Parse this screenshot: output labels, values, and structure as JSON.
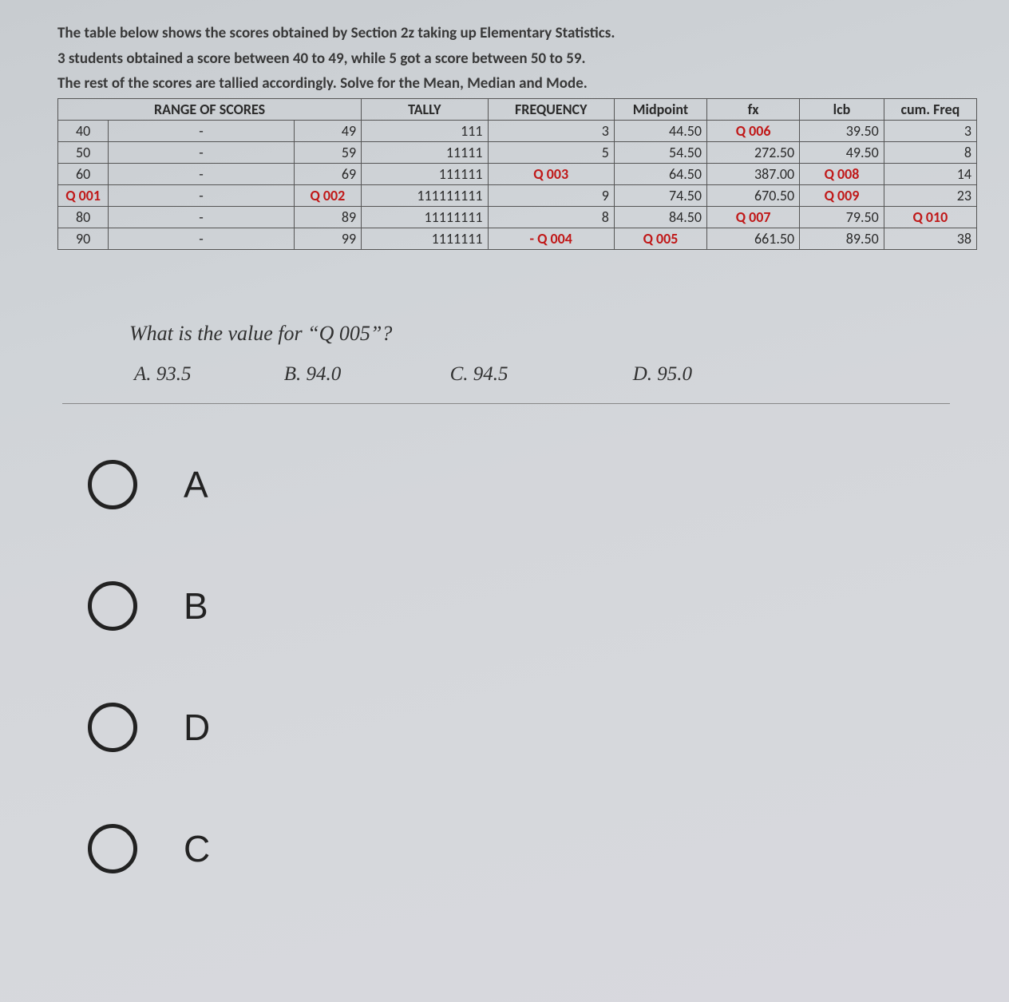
{
  "intro": {
    "line1": "The table below shows the scores obtained by Section 2z taking up Elementary Statistics.",
    "line2": "3 students obtained a score between 40 to 49, while 5 got a score between 50 to 59.",
    "line3": "The rest of the scores are tallied accordingly.  Solve for the Mean, Median and Mode."
  },
  "table": {
    "headers": {
      "range": "RANGE OF SCORES",
      "tally": "TALLY",
      "freq": "FREQUENCY",
      "mid": "Midpoint",
      "fx": "fx",
      "lcb": "lcb",
      "cf": "cum. Freq"
    },
    "rows": [
      {
        "low": "40",
        "dash": "-",
        "high": "49",
        "tally": "111",
        "freq": "3",
        "mid": "44.50",
        "fx": "Q 006",
        "fx_red": true,
        "lcb": "39.50",
        "cf": "3"
      },
      {
        "low": "50",
        "dash": "-",
        "high": "59",
        "tally": "11111",
        "freq": "5",
        "mid": "54.50",
        "fx": "272.50",
        "lcb": "49.50",
        "cf": "8"
      },
      {
        "low": "60",
        "dash": "-",
        "high": "69",
        "tally": "111111",
        "freq": "Q 003",
        "freq_red": true,
        "mid": "64.50",
        "fx": "387.00",
        "lcb": "Q 008",
        "lcb_red": true,
        "cf": "14"
      },
      {
        "low": "Q 001",
        "low_red": true,
        "dash": "-",
        "high": "Q 002",
        "high_red": true,
        "tally": "111111111",
        "freq": "9",
        "mid": "74.50",
        "fx": "670.50",
        "lcb": "Q 009",
        "lcb_red": true,
        "cf": "23"
      },
      {
        "low": "80",
        "dash": "-",
        "high": "89",
        "tally": "11111111",
        "freq": "8",
        "mid": "84.50",
        "fx": "Q 007",
        "fx_red": true,
        "lcb": "79.50",
        "cf": "Q 010",
        "cf_red": true
      },
      {
        "low": "90",
        "dash": "-",
        "high": "99",
        "tally": "1111111",
        "freq": "- Q 004",
        "freq_red": true,
        "mid": "Q 005",
        "mid_red": true,
        "fx": "661.50",
        "lcb": "89.50",
        "cf": "38"
      }
    ]
  },
  "question": {
    "text": "What is the value for “Q 005”?",
    "inline": {
      "a": "A.  93.5",
      "b": "B.  94.0",
      "c": "C.  94.5",
      "d": "D.  95.0"
    }
  },
  "radios": {
    "a": "A",
    "b": "B",
    "d": "D",
    "c": "C"
  }
}
